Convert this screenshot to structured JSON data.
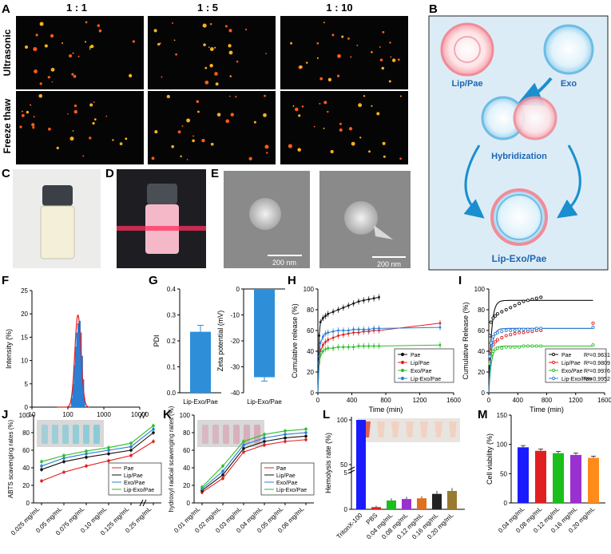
{
  "panel_letters": {
    "A": "A",
    "B": "B",
    "C": "C",
    "D": "D",
    "E": "E",
    "F": "F",
    "G": "G",
    "H": "H",
    "I": "I",
    "J": "J",
    "K": "K",
    "L": "L",
    "M": "M"
  },
  "panel_A": {
    "col_labels": [
      "1 : 1",
      "1 : 5",
      "1 : 10"
    ],
    "row_labels": [
      "Ultrasonic",
      "Freeze thaw"
    ]
  },
  "panel_B": {
    "labels": [
      "Lip/Pae",
      "Exo",
      "Hybridization",
      "Lip-Exo/Pae"
    ],
    "colors": {
      "lip": "#e8334a",
      "exo": "#2a9fd6",
      "arrow": "#1a8fd0",
      "text": "#1e66b3",
      "bg": "#dcecf6"
    }
  },
  "panel_E": {
    "scalebars": [
      "200 nm",
      "200 nm"
    ]
  },
  "chart_data": [
    {
      "id": "F",
      "type": "bar",
      "xlabel": "Size (nm)",
      "ylabel": "Intensity (%)",
      "xscale": "log",
      "xlim": [
        10,
        10000
      ],
      "xticks": [
        "10",
        "100",
        "1000",
        "10000"
      ],
      "ylim": [
        0,
        25
      ],
      "yticks": [
        "0",
        "5",
        "10",
        "15",
        "20",
        "25"
      ],
      "x": [
        130,
        142,
        155,
        168,
        182,
        197,
        212,
        228,
        246,
        265,
        285
      ],
      "values": [
        2,
        5,
        9,
        13,
        16,
        18,
        18.5,
        16,
        11,
        6,
        2
      ],
      "fit_peak": {
        "x": 190,
        "y": 19.8
      },
      "color": "#2a7fd4",
      "fit_color": "#e02020"
    },
    {
      "id": "G1",
      "type": "bar",
      "categories": [
        "Lip-Exo/Pae"
      ],
      "values": [
        0.235
      ],
      "error": [
        0.025
      ],
      "ylabel": "PDI",
      "ylim": [
        0,
        0.4
      ],
      "yticks": [
        "0.0",
        "0.1",
        "0.2",
        "0.3",
        "0.4"
      ],
      "color": "#2e8fd8"
    },
    {
      "id": "G2",
      "type": "bar",
      "categories": [
        "Lip-Exo/Pae"
      ],
      "values": [
        -34
      ],
      "error": [
        1.5
      ],
      "ylabel": "Zeta potential (mV)",
      "ylim": [
        -40,
        0
      ],
      "yticks": [
        "-40",
        "-30",
        "-20",
        "-10",
        "0"
      ],
      "color": "#2e8fd8"
    },
    {
      "id": "H",
      "type": "line",
      "xlabel": "Time (min)",
      "ylabel": "Cumulative release (%)",
      "xlim": [
        0,
        1600
      ],
      "ylim": [
        0,
        100
      ],
      "xticks": [
        "0",
        "400",
        "800",
        "1200",
        "1600"
      ],
      "yticks": [
        "0",
        "20",
        "40",
        "60",
        "80",
        "100"
      ],
      "legend": "bottom-right",
      "series": [
        {
          "name": "Pae",
          "color": "#111111",
          "x": [
            0,
            15,
            30,
            60,
            90,
            120,
            180,
            240,
            300,
            360,
            420,
            480,
            540,
            600,
            660,
            720
          ],
          "y": [
            0,
            55,
            68,
            72,
            74,
            76,
            78,
            80,
            82,
            84,
            86,
            88,
            89,
            90,
            91,
            92
          ]
        },
        {
          "name": "Lip/Pae",
          "color": "#e02020",
          "x": [
            0,
            15,
            30,
            60,
            90,
            120,
            180,
            240,
            300,
            360,
            420,
            480,
            540,
            600,
            660,
            720,
            1440
          ],
          "y": [
            0,
            30,
            40,
            46,
            49,
            51,
            53,
            55,
            56,
            57,
            58,
            58,
            59,
            59,
            60,
            60,
            67
          ]
        },
        {
          "name": "Exo/Pae",
          "color": "#2bbf2b",
          "x": [
            0,
            15,
            30,
            60,
            90,
            120,
            180,
            240,
            300,
            360,
            420,
            480,
            540,
            600,
            660,
            720,
            1440
          ],
          "y": [
            0,
            28,
            36,
            40,
            42,
            43,
            43,
            44,
            44,
            44,
            44,
            45,
            45,
            45,
            45,
            45,
            46
          ]
        },
        {
          "name": "Lip-Exo/Pae",
          "color": "#2a7fd4",
          "x": [
            0,
            15,
            30,
            60,
            90,
            120,
            180,
            240,
            300,
            360,
            420,
            480,
            540,
            600,
            660,
            720,
            1440
          ],
          "y": [
            0,
            35,
            48,
            54,
            57,
            58,
            59,
            60,
            60,
            60,
            61,
            61,
            61,
            61,
            62,
            62,
            63
          ]
        }
      ]
    },
    {
      "id": "I",
      "type": "scatter",
      "xlabel": "Time (min)",
      "ylabel": "Cumulative Release (%)",
      "xlim": [
        0,
        1600
      ],
      "ylim": [
        0,
        100
      ],
      "xticks": [
        "0",
        "400",
        "800",
        "1200",
        "1600"
      ],
      "yticks": [
        "0",
        "20",
        "40",
        "60",
        "80",
        "100"
      ],
      "legend": "bottom-right",
      "series": [
        {
          "name": "Pae",
          "r2": "R²=0.9631",
          "color": "#111111",
          "x": [
            15,
            30,
            60,
            90,
            120,
            180,
            240,
            300,
            360,
            420,
            480,
            540,
            600,
            660,
            720
          ],
          "y": [
            55,
            68,
            72,
            74,
            76,
            78,
            80,
            82,
            84,
            86,
            88,
            89,
            90,
            91,
            92
          ],
          "fit_max": 89
        },
        {
          "name": "Lip/Pae",
          "r2": "R²=0.9809",
          "color": "#e02020",
          "x": [
            15,
            30,
            60,
            90,
            120,
            180,
            240,
            300,
            360,
            420,
            480,
            540,
            600,
            660,
            720,
            1440
          ],
          "y": [
            30,
            40,
            46,
            49,
            51,
            53,
            55,
            56,
            57,
            58,
            58,
            59,
            59,
            60,
            60,
            67
          ],
          "fit_max": 62
        },
        {
          "name": "Exo/Pae",
          "r2": "R²=0.9976",
          "color": "#2bbf2b",
          "x": [
            15,
            30,
            60,
            90,
            120,
            180,
            240,
            300,
            360,
            420,
            480,
            540,
            600,
            660,
            720,
            1440
          ],
          "y": [
            28,
            36,
            40,
            42,
            43,
            43,
            44,
            44,
            44,
            44,
            45,
            45,
            45,
            45,
            45,
            46
          ],
          "fit_max": 45
        },
        {
          "name": "Lip-Exo/Pae",
          "r2": "R²=0.9952",
          "color": "#2a7fd4",
          "x": [
            15,
            30,
            60,
            90,
            120,
            180,
            240,
            300,
            360,
            420,
            480,
            540,
            600,
            660,
            720,
            1440
          ],
          "y": [
            35,
            48,
            54,
            57,
            58,
            59,
            60,
            60,
            60,
            61,
            61,
            61,
            61,
            62,
            62,
            63
          ],
          "fit_max": 62
        }
      ]
    },
    {
      "id": "J",
      "type": "line",
      "ylabel": "ABTS scavenging rates (%)",
      "ylim": [
        0,
        100
      ],
      "yticks": [
        "0",
        "20",
        "40",
        "60",
        "80",
        "100"
      ],
      "legend": "bottom-right",
      "axis_break": true,
      "categories": [
        "0.025 mg/mL",
        "0.05 mg/mL",
        "0.075 mg/mL",
        "0.10 mg/mL",
        "0.125 mg/mL",
        "0.25 mg/mL"
      ],
      "series": [
        {
          "name": "Pae",
          "color": "#e02020",
          "values": [
            25,
            35,
            42,
            48,
            54,
            70
          ]
        },
        {
          "name": "Lip/Pae",
          "color": "#111111",
          "values": [
            38,
            47,
            52,
            56,
            60,
            80
          ]
        },
        {
          "name": "Exo/Pae",
          "color": "#2a7fd4",
          "values": [
            42,
            51,
            56,
            60,
            64,
            84
          ]
        },
        {
          "name": "Lip-Exo/Pae",
          "color": "#2bbf2b",
          "values": [
            47,
            54,
            59,
            63,
            68,
            88
          ]
        }
      ]
    },
    {
      "id": "K",
      "type": "line",
      "ylabel": "hydroxyl radical scavenging rates (%)",
      "ylim": [
        0,
        100
      ],
      "yticks": [
        "0",
        "20",
        "40",
        "60",
        "80",
        "100"
      ],
      "legend": "bottom-right",
      "categories": [
        "0.01 mg/mL",
        "0.02 mg/mL",
        "0.03 mg/mL",
        "0.04 mg/mL",
        "0.05 mg/mL",
        "0.06 mg/mL"
      ],
      "series": [
        {
          "name": "Pae",
          "color": "#e02020",
          "values": [
            12,
            28,
            58,
            66,
            70,
            72
          ]
        },
        {
          "name": "Lip/Pae",
          "color": "#111111",
          "values": [
            14,
            32,
            62,
            70,
            74,
            76
          ]
        },
        {
          "name": "Exo/Pae",
          "color": "#2a7fd4",
          "values": [
            16,
            36,
            66,
            74,
            78,
            80
          ]
        },
        {
          "name": "Lip-Exo/Pae",
          "color": "#2bbf2b",
          "values": [
            18,
            42,
            70,
            78,
            82,
            84
          ]
        }
      ]
    },
    {
      "id": "L",
      "type": "bar",
      "ylabel": "Hemolysis rate (%)",
      "yticks": [
        "0",
        "5",
        "50",
        "100"
      ],
      "axis_break": true,
      "categories": [
        "TritonX-100",
        "PBS",
        "0.04 mg/mL",
        "0.08 mg/mL",
        "0.12 mg/mL",
        "0.16 mg/mL",
        "0.20 mg/mL"
      ],
      "values": [
        100,
        0.3,
        1.2,
        1.4,
        1.5,
        2.1,
        2.5
      ],
      "error": [
        0,
        0.2,
        0.3,
        0.3,
        0.3,
        0.4,
        0.4
      ],
      "colors": [
        "#1a1aff",
        "#e02020",
        "#1bbf1b",
        "#9b30d0",
        "#e07020",
        "#222222",
        "#9a7a30"
      ]
    },
    {
      "id": "M",
      "type": "bar",
      "ylabel": "Cell viability (%)",
      "ylim": [
        0,
        150
      ],
      "yticks": [
        "0",
        "50",
        "100",
        "150"
      ],
      "categories": [
        "0.04 mg/mL",
        "0.08 mg/mL",
        "0.12 mg/mL",
        "0.16 mg/mL",
        "0.20 mg/mL"
      ],
      "values": [
        95,
        89,
        85,
        82,
        77
      ],
      "error": [
        3,
        3,
        3,
        3,
        3
      ],
      "colors": [
        "#1a1aff",
        "#e02020",
        "#1bbf1b",
        "#9b30d0",
        "#ff8c1a"
      ]
    }
  ]
}
